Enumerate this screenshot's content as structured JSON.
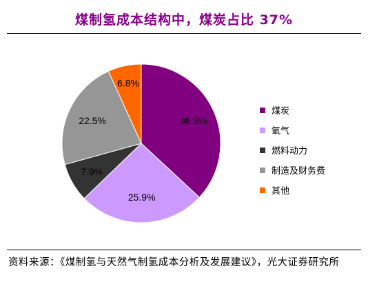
{
  "chart_data": {
    "type": "pie",
    "title": "煤制氢成本结构中，煤炭占比 37%",
    "categories": [
      "煤炭",
      "氧气",
      "燃料动力",
      "制造及财务费",
      "其他"
    ],
    "values": [
      36.9,
      25.9,
      7.9,
      22.5,
      6.8
    ],
    "labels": [
      "36.9%",
      "25.9%",
      "7.9%",
      "22.5%",
      "6.8%"
    ],
    "colors": [
      "#800080",
      "#CC99FF",
      "#333333",
      "#969696",
      "#FF6600"
    ],
    "start": "12 o'clock",
    "direction": "clockwise",
    "legend_position": "right"
  },
  "source": "资料来源：《煤制氢与天然气制氢成本分析及发展建议》，光大证券研究所"
}
